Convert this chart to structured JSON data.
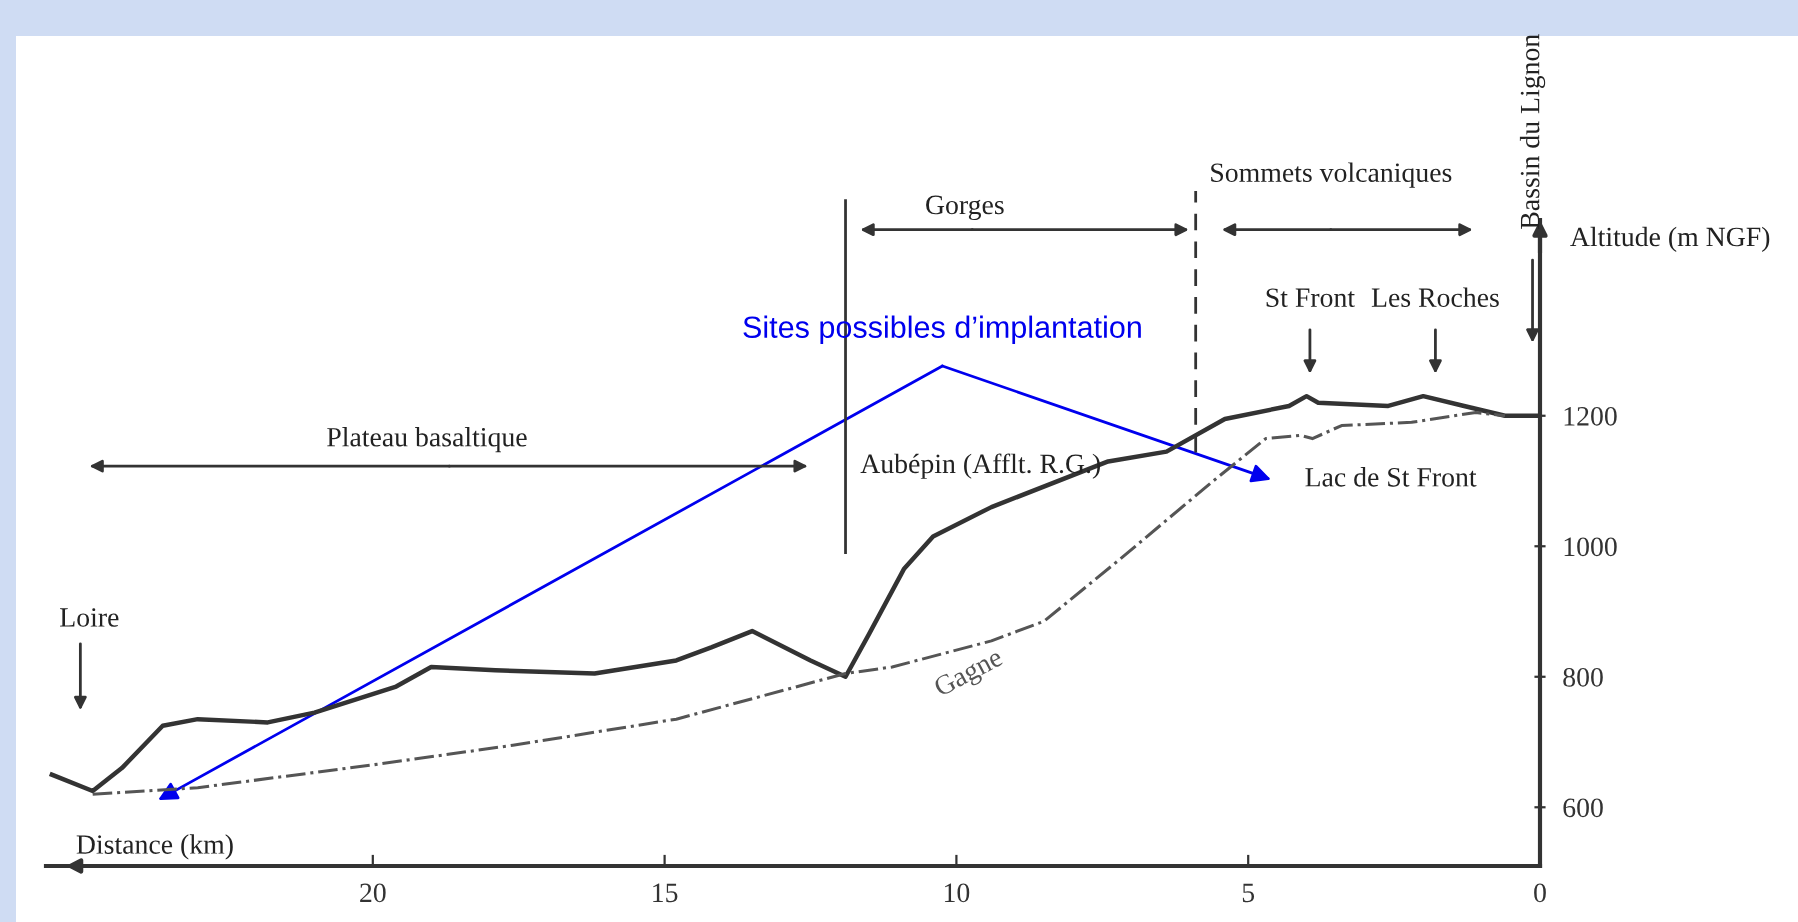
{
  "chart_data": {
    "type": "line",
    "xlabel": "Distance (km)",
    "ylabel": "Altitude (m NGF)",
    "xlim": [
      25.6,
      0
    ],
    "ylim": [
      510,
      1500
    ],
    "xticks": [
      20,
      15,
      10,
      5,
      0
    ],
    "yticks": [
      600,
      800,
      1000,
      1200
    ],
    "grid": false,
    "legend": false,
    "marker": "none",
    "series": [
      {
        "color": "#333333",
        "line_style": "solid",
        "x": [
          25.5,
          24.8,
          24.3,
          23.6,
          23.0,
          21.8,
          21.0,
          19.6,
          19.0,
          17.9,
          16.2,
          14.8,
          14.2,
          13.5,
          12.5,
          11.9,
          11.5,
          10.9,
          10.4,
          9.4,
          7.4,
          6.4,
          5.4,
          4.3,
          4.0,
          3.8,
          2.6,
          2.0,
          1.3,
          0.6,
          0
        ],
        "values": [
          650,
          625,
          660,
          725,
          735,
          730,
          745,
          785,
          815,
          810,
          805,
          825,
          845,
          870,
          825,
          800,
          865,
          965,
          1015,
          1060,
          1130,
          1145,
          1195,
          1215,
          1230,
          1220,
          1215,
          1230,
          1215,
          1200,
          1200
        ]
      },
      {
        "name": "Gagne",
        "color": "#555555",
        "line_style": "dashed",
        "x": [
          24.8,
          23.0,
          20.0,
          17.6,
          14.8,
          11.9,
          11.1,
          9.4,
          8.5,
          7.2,
          5.6,
          4.7,
          4.1,
          3.9,
          3.4,
          2.2,
          1.1,
          0.6
        ],
        "values": [
          620,
          630,
          665,
          695,
          735,
          805,
          815,
          855,
          885,
          980,
          1100,
          1165,
          1170,
          1165,
          1185,
          1190,
          1205,
          1200
        ]
      }
    ],
    "ref_lines": [
      {
        "axis": "x",
        "value": 11.9,
        "line_style": "solid",
        "color": "#333333"
      },
      {
        "axis": "x",
        "value": 5.9,
        "line_style": "dashed",
        "color": "#333333"
      }
    ],
    "annotations": [
      "Loire",
      "St Front",
      "Les Roches",
      "Bassin du Lignon",
      "Aubépin (Afflt. R.G.)",
      "Lac de St Front",
      "Sites possibles d’implantation",
      "Plateau basaltique",
      "Gorges",
      "Sommets volcaniques"
    ]
  }
}
